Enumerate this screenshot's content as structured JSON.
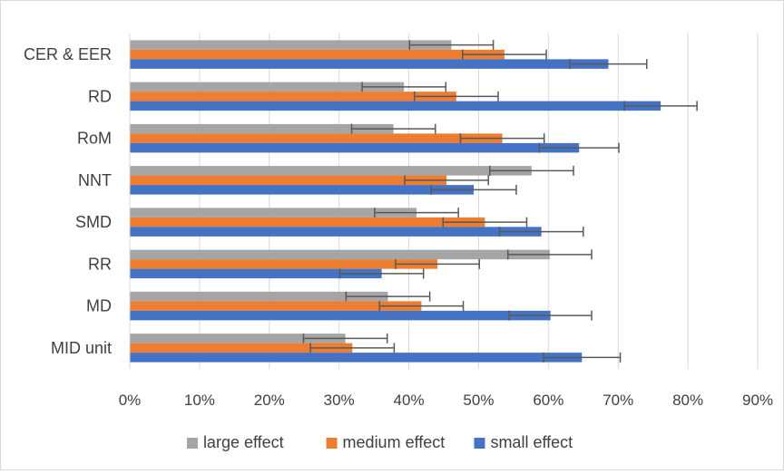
{
  "chart_data": {
    "type": "bar",
    "orientation": "horizontal",
    "categories": [
      "CER & EER",
      "RD",
      "RoM",
      "NNT",
      "SMD",
      "RR",
      "MD",
      "MID unit"
    ],
    "series": [
      {
        "name": "large effect",
        "color": "#a5a5a5",
        "values": [
          46.1,
          39.3,
          37.8,
          57.6,
          41.1,
          60.2,
          37.0,
          30.9
        ],
        "errors": [
          6.0,
          6.0,
          6.0,
          6.0,
          6.0,
          6.0,
          6.0,
          6.0
        ]
      },
      {
        "name": "medium effect",
        "color": "#ed7d31",
        "values": [
          53.7,
          46.8,
          53.4,
          45.4,
          50.9,
          44.1,
          41.8,
          31.9
        ],
        "errors": [
          6.0,
          6.0,
          6.0,
          6.0,
          6.0,
          6.0,
          6.0,
          6.0
        ]
      },
      {
        "name": "small effect",
        "color": "#4472c4",
        "values": [
          68.6,
          76.1,
          64.4,
          49.3,
          59.0,
          36.1,
          60.3,
          64.8
        ],
        "errors": [
          5.5,
          5.2,
          5.7,
          6.1,
          6.0,
          6.0,
          5.9,
          5.5
        ]
      }
    ],
    "xlim": [
      0,
      90
    ],
    "x_ticks": [
      0,
      10,
      20,
      30,
      40,
      50,
      60,
      70,
      80,
      90
    ],
    "x_tick_labels": [
      "0%",
      "10%",
      "20%",
      "30%",
      "40%",
      "50%",
      "60%",
      "70%",
      "80%",
      "90%"
    ],
    "grid": true,
    "legend_position": "bottom",
    "title": "",
    "xlabel": "",
    "ylabel": ""
  }
}
